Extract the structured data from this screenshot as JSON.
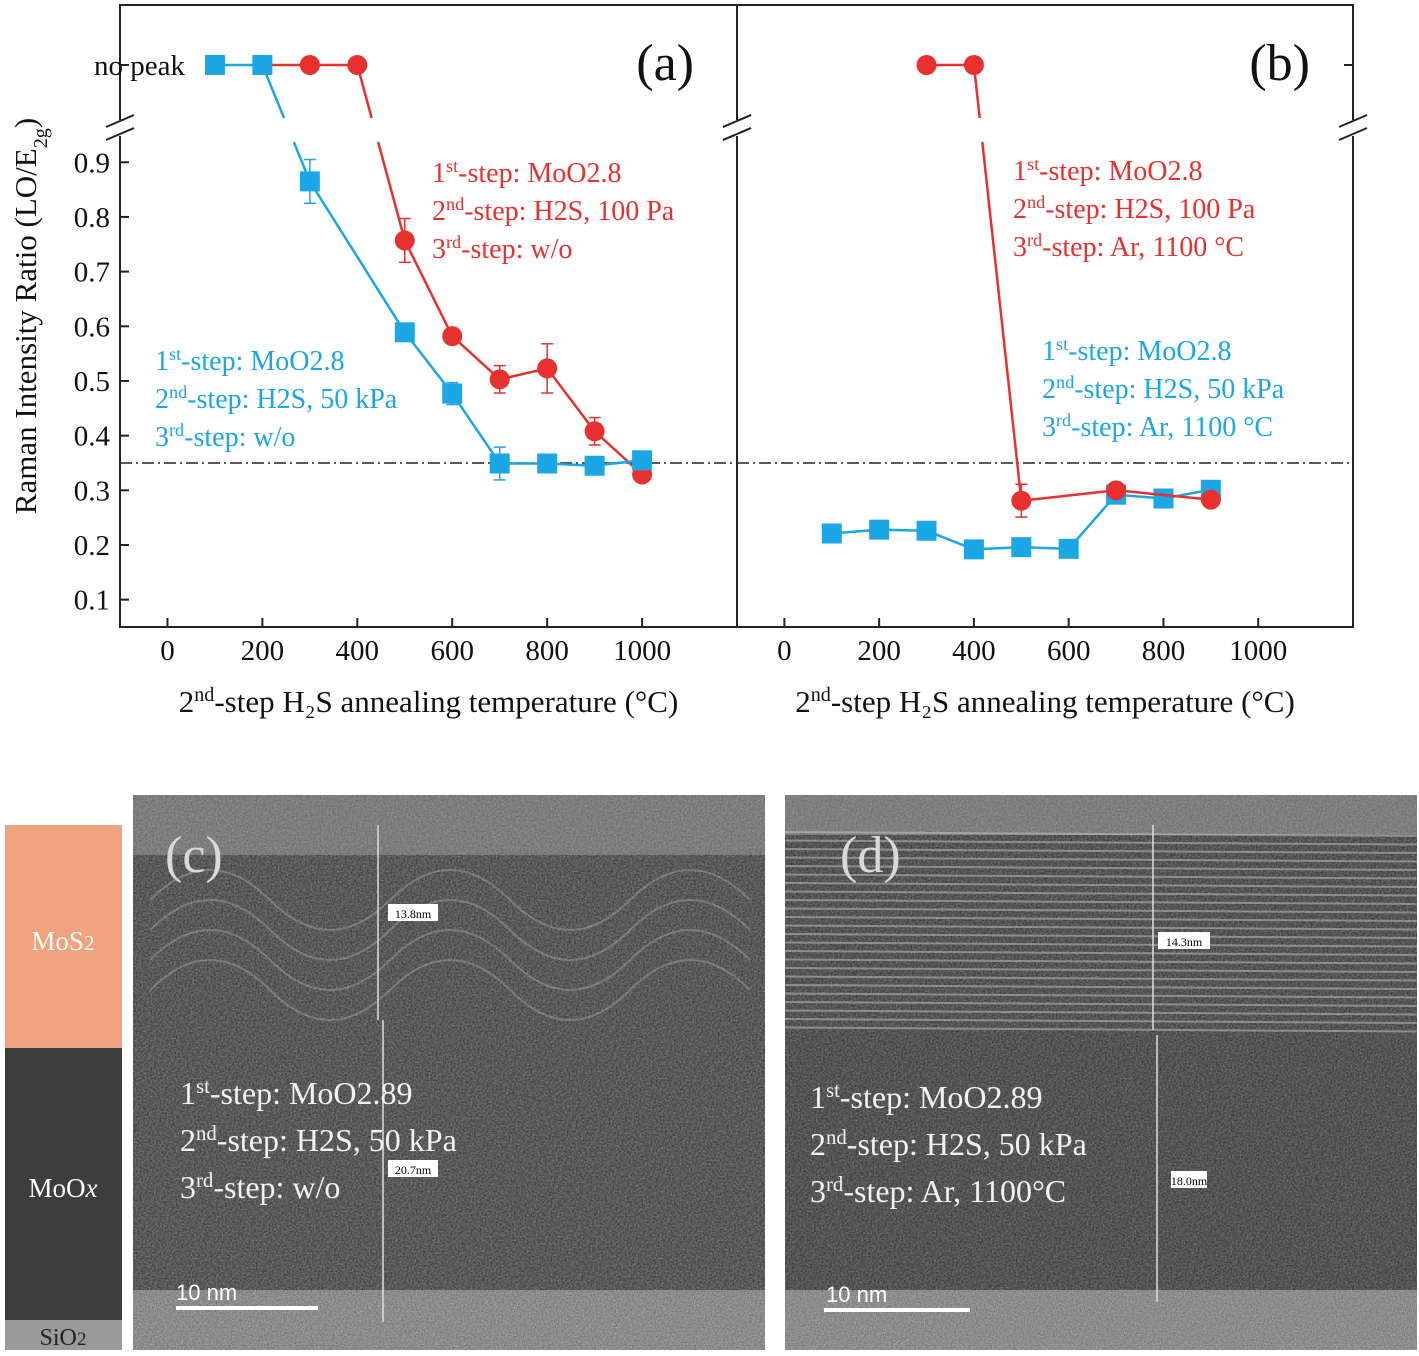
{
  "chart_data": [
    {
      "type": "line",
      "panel_label": "(a)",
      "xlim": [
        -100,
        1200
      ],
      "xticks": [
        0,
        200,
        400,
        600,
        800,
        1000
      ],
      "ylim": [
        0.05,
        0.97
      ],
      "yticks": [
        0.1,
        0.2,
        0.3,
        0.4,
        0.5,
        0.6,
        0.7,
        0.8,
        0.9
      ],
      "x_label": [
        "2",
        "nd",
        "-step H₂S annealing temperature (°C)"
      ],
      "y_label": [
        "Raman Intensity Ratio (LO/E",
        "2g",
        ")"
      ],
      "no_peak_label": "no peak",
      "reference_line": 0.35,
      "series": [
        {
          "color": "#e8312f",
          "marker": "circle",
          "no_peak_x": [
            200,
            300,
            400
          ],
          "x": [
            500,
            600,
            700,
            800,
            900,
            1000
          ],
          "values": [
            0.757,
            0.582,
            0.503,
            0.523,
            0.408,
            0.329
          ],
          "errors": [
            0.04,
            0.012,
            0.025,
            0.045,
            0.025,
            0
          ]
        },
        {
          "color": "#1ba6e6",
          "marker": "square",
          "no_peak_x": [
            100,
            200
          ],
          "x": [
            300,
            500,
            600,
            700,
            800,
            900,
            1000
          ],
          "values": [
            0.865,
            0.589,
            0.477,
            0.349,
            0.349,
            0.345,
            0.355
          ],
          "errors": [
            0.04,
            0,
            0.02,
            0.03,
            0,
            0,
            0
          ]
        }
      ],
      "annotations": [
        {
          "color": "#e8312f",
          "lines": [
            [
              "1",
              "st",
              "-step: MoO2.8"
            ],
            [
              "2",
              "nd",
              "-step: H2S, 100 Pa"
            ],
            [
              "3",
              "rd",
              "-step: w/o"
            ]
          ]
        },
        {
          "color": "#1ba6e6",
          "lines": [
            [
              "1",
              "st",
              "-step: MoO2.8"
            ],
            [
              "2",
              "nd",
              "-step: H2S, 50 kPa"
            ],
            [
              "3",
              "rd",
              "-step: w/o"
            ]
          ]
        }
      ]
    },
    {
      "type": "line",
      "panel_label": "(b)",
      "xlim": [
        -100,
        1200
      ],
      "xticks": [
        0,
        200,
        400,
        600,
        800,
        1000
      ],
      "ylim": [
        0.05,
        0.97
      ],
      "x_label": [
        "2",
        "nd",
        "-step H₂S annealing temperature (°C)"
      ],
      "reference_line": 0.35,
      "series": [
        {
          "color": "#1ba6e6",
          "marker": "square",
          "x": [
            100,
            200,
            300,
            400,
            500,
            600,
            700,
            800,
            900
          ],
          "values": [
            0.221,
            0.228,
            0.226,
            0.192,
            0.196,
            0.193,
            0.292,
            0.285,
            0.301
          ]
        },
        {
          "color": "#e8312f",
          "marker": "circle",
          "no_peak_x": [
            300,
            400
          ],
          "x": [
            500,
            700,
            900
          ],
          "values": [
            0.281,
            0.3,
            0.283
          ],
          "errors": [
            0.03,
            0.01,
            0
          ]
        }
      ],
      "annotations": [
        {
          "color": "#e8312f",
          "lines": [
            [
              "1",
              "st",
              "-step: MoO2.8"
            ],
            [
              "2",
              "nd",
              "-step: H2S, 100 Pa"
            ],
            [
              "3",
              "rd",
              "-step: Ar, 1100 °C"
            ]
          ]
        },
        {
          "color": "#1ba6e6",
          "lines": [
            [
              "1",
              "st",
              "-step: MoO2.8"
            ],
            [
              "2",
              "nd",
              "-step: H2S, 50 kPa"
            ],
            [
              "3",
              "rd",
              "-step: Ar, 1100 °C"
            ]
          ]
        }
      ]
    }
  ],
  "layers": [
    [
      "MoS",
      "2"
    ],
    [
      "MoO",
      "x"
    ],
    [
      "SiO",
      "2"
    ]
  ],
  "images": [
    {
      "label": "(c)",
      "thickness_labels": [
        "13.8nm",
        "20.7nm"
      ],
      "scale_bar": "10 nm",
      "lines": [
        [
          "1",
          "st",
          "-step: MoO2.89"
        ],
        [
          "2",
          "nd",
          "-step: H2S, 50 kPa"
        ],
        [
          "3",
          "rd",
          "-step: w/o"
        ]
      ]
    },
    {
      "label": "(d)",
      "thickness_labels": [
        "14.3nm",
        "18.0nm"
      ],
      "scale_bar": "10 nm",
      "lines": [
        [
          "1",
          "st",
          "-step: MoO2.89"
        ],
        [
          "2",
          "nd",
          "-step: H2S, 50 kPa"
        ],
        [
          "3",
          "rd",
          "-step: Ar, 1100°C"
        ]
      ]
    }
  ]
}
